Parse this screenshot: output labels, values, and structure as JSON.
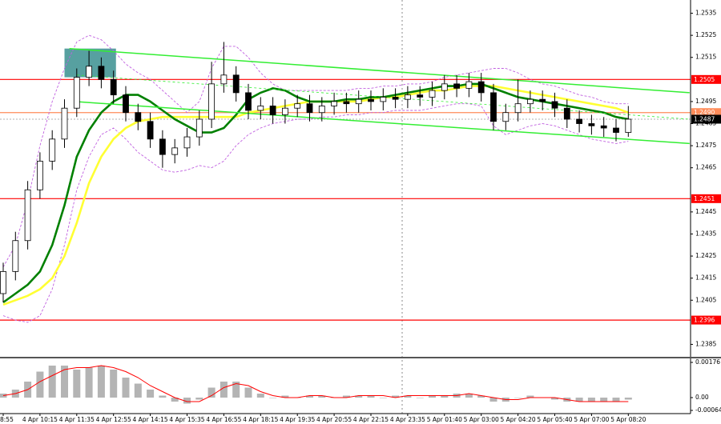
{
  "chart_data": [
    {
      "type": "candlestick",
      "categories": [
        "8:55",
        null,
        null,
        "4 Apr 10:15",
        null,
        null,
        "4 Apr 11:35",
        null,
        null,
        "4 Apr 12:55",
        null,
        null,
        "4 Apr 14:15",
        null,
        null,
        "4 Apr 15:35",
        null,
        null,
        "4 Apr 16:55",
        null,
        null,
        "4 Apr 18:15",
        null,
        null,
        "4 Apr 19:35",
        null,
        null,
        "4 Apr 20:55",
        null,
        null,
        "4 Apr 22:15",
        null,
        null,
        "4 Apr 23:35",
        null,
        null,
        "5 Apr 01:40",
        null,
        null,
        "5 Apr 03:00",
        null,
        null,
        "5 Apr 04:20",
        null,
        null,
        "5 Apr 05:40",
        null,
        null,
        "5 Apr 07:00",
        null,
        null,
        "5 Apr 08:20"
      ],
      "open": [
        1.2408,
        1.2418,
        1.2432,
        1.2455,
        1.2468,
        1.2478,
        1.2492,
        1.2506,
        1.2511,
        1.2505,
        1.2498,
        1.249,
        1.2486,
        1.2478,
        1.2471,
        1.2474,
        1.2479,
        1.2487,
        1.2503,
        1.2507,
        1.2499,
        1.2491,
        1.2493,
        1.2489,
        1.2492,
        1.2494,
        1.249,
        1.2493,
        1.2495,
        1.2494,
        1.2496,
        1.2495,
        1.2497,
        1.2496,
        1.2498,
        1.2497,
        1.25,
        1.2503,
        1.2501,
        1.2504,
        1.2499,
        1.2486,
        1.249,
        1.2494,
        1.2496,
        1.2495,
        1.2492,
        1.2487,
        1.2485,
        1.2484,
        1.2483,
        1.2481
      ],
      "high": [
        1.2422,
        1.2436,
        1.2459,
        1.2472,
        1.2482,
        1.2496,
        1.251,
        1.2518,
        1.2515,
        1.2509,
        1.2502,
        1.2494,
        1.249,
        1.2482,
        1.2478,
        1.2483,
        1.2491,
        1.2513,
        1.2522,
        1.2511,
        1.2503,
        1.2497,
        1.2497,
        1.2496,
        1.2498,
        1.2498,
        1.2497,
        1.2499,
        1.2499,
        1.25,
        1.25,
        1.2501,
        1.2501,
        1.2502,
        1.2502,
        1.2504,
        1.2507,
        1.2507,
        1.2508,
        1.2508,
        1.2503,
        1.2494,
        1.2505,
        1.25,
        1.25,
        1.2499,
        1.2496,
        1.2491,
        1.2489,
        1.2488,
        1.2487,
        1.2493
      ],
      "low": [
        1.2404,
        1.2414,
        1.2428,
        1.2451,
        1.2464,
        1.2474,
        1.2488,
        1.2502,
        1.2501,
        1.2494,
        1.2486,
        1.2482,
        1.2474,
        1.2465,
        1.2467,
        1.247,
        1.2475,
        1.2483,
        1.2499,
        1.2495,
        1.2487,
        1.2487,
        1.2485,
        1.2485,
        1.2488,
        1.2486,
        1.2486,
        1.2489,
        1.249,
        1.249,
        1.2491,
        1.2491,
        1.2492,
        1.2492,
        1.2493,
        1.2493,
        1.2496,
        1.2497,
        1.2497,
        1.2495,
        1.2482,
        1.2482,
        1.2486,
        1.249,
        1.2491,
        1.2488,
        1.2483,
        1.2481,
        1.248,
        1.2479,
        1.2477,
        1.2479
      ],
      "close": [
        1.2418,
        1.2432,
        1.2455,
        1.2468,
        1.2478,
        1.2492,
        1.2506,
        1.2511,
        1.2505,
        1.2498,
        1.249,
        1.2486,
        1.2478,
        1.2471,
        1.2474,
        1.2479,
        1.2487,
        1.2503,
        1.2507,
        1.2499,
        1.2491,
        1.2493,
        1.2489,
        1.2492,
        1.2494,
        1.249,
        1.2493,
        1.2495,
        1.2494,
        1.2496,
        1.2495,
        1.2497,
        1.2496,
        1.2498,
        1.2497,
        1.25,
        1.2503,
        1.2501,
        1.2504,
        1.2499,
        1.2486,
        1.249,
        1.2494,
        1.2496,
        1.2495,
        1.2492,
        1.2487,
        1.2485,
        1.2484,
        1.2483,
        1.2481,
        1.2487
      ],
      "up_color": "#ffffff",
      "down_color": "#000000",
      "overlays": [
        {
          "color": "#c060e0",
          "dashed": true,
          "values": [
            1.242,
            1.243,
            1.245,
            1.2475,
            1.2495,
            1.251,
            1.2522,
            1.2525,
            1.2523,
            1.2518,
            1.2512,
            1.2508,
            1.2505,
            1.25,
            1.2495,
            1.249,
            1.2495,
            1.251,
            1.252,
            1.252,
            1.2515,
            1.2508,
            1.2503,
            1.25,
            1.25,
            1.25,
            1.25,
            1.25,
            1.25,
            1.2501,
            1.2501,
            1.2502,
            1.2502,
            1.2503,
            1.2503,
            1.2504,
            1.2506,
            1.2507,
            1.2508,
            1.2509,
            1.251,
            1.251,
            1.2508,
            1.2505,
            1.2503,
            1.2502,
            1.25,
            1.2498,
            1.2497,
            1.2495,
            1.2494,
            1.2494
          ]
        },
        {
          "color": "#c060e0",
          "dashed": true,
          "values": [
            1.2398,
            1.2396,
            1.2395,
            1.2398,
            1.241,
            1.243,
            1.2455,
            1.247,
            1.248,
            1.2483,
            1.2478,
            1.2472,
            1.2468,
            1.2464,
            1.2463,
            1.2464,
            1.2466,
            1.2465,
            1.2468,
            1.2475,
            1.248,
            1.2483,
            1.2485,
            1.2486,
            1.2487,
            1.2487,
            1.2488,
            1.2488,
            1.2489,
            1.2489,
            1.249,
            1.249,
            1.2491,
            1.2491,
            1.2491,
            1.2492,
            1.2493,
            1.2494,
            1.2494,
            1.2493,
            1.2484,
            1.248,
            1.2482,
            1.2484,
            1.2485,
            1.2484,
            1.2482,
            1.248,
            1.2478,
            1.2477,
            1.2476,
            1.2477
          ]
        },
        {
          "color": "#ffff33",
          "dashed": false,
          "values": [
            1.2403,
            1.2405,
            1.2407,
            1.241,
            1.2415,
            1.2425,
            1.244,
            1.2458,
            1.247,
            1.2478,
            1.2483,
            1.2486,
            1.2487,
            1.2488,
            1.2488,
            1.2488,
            1.2488,
            1.2488,
            1.2488,
            1.2488,
            1.249,
            1.2491,
            1.2492,
            1.2493,
            1.2494,
            1.2495,
            1.2495,
            1.2495,
            1.2495,
            1.2495,
            1.2496,
            1.2497,
            1.2497,
            1.2498,
            1.2499,
            1.25,
            1.25,
            1.2501,
            1.2502,
            1.2502,
            1.2502,
            1.2501,
            1.25,
            1.2499,
            1.2498,
            1.2497,
            1.2496,
            1.2495,
            1.2494,
            1.2493,
            1.2492,
            1.249
          ]
        },
        {
          "color": "#008000",
          "dashed": false,
          "values": [
            1.2404,
            1.2408,
            1.2412,
            1.2418,
            1.243,
            1.2448,
            1.247,
            1.2482,
            1.249,
            1.2495,
            1.2498,
            1.2498,
            1.2495,
            1.2491,
            1.2487,
            1.2484,
            1.2481,
            1.2481,
            1.2483,
            1.2489,
            1.2496,
            1.2499,
            1.2501,
            1.25,
            1.2497,
            1.2495,
            1.2495,
            1.2495,
            1.2496,
            1.2496,
            1.2497,
            1.2497,
            1.2498,
            1.2499,
            1.25,
            1.2501,
            1.2502,
            1.2502,
            1.2503,
            1.2503,
            1.2501,
            1.2499,
            1.2497,
            1.2496,
            1.2495,
            1.2494,
            1.2493,
            1.2492,
            1.2491,
            1.249,
            1.2488,
            1.2487
          ]
        }
      ],
      "trendlines": [
        {
          "x": [
            5.4,
            56
          ],
          "y": [
            1.2519,
            1.2499
          ],
          "color": "#33ee33",
          "dashed": false
        },
        {
          "x": [
            5.8,
            56
          ],
          "y": [
            1.2495,
            1.2476
          ],
          "color": "#33ee33",
          "dashed": false
        },
        {
          "x": [
            6,
            56
          ],
          "y": [
            1.2507,
            1.2487
          ],
          "color": "#33ee33",
          "dashed": true
        }
      ],
      "zones": [
        {
          "x": [
            5,
            9.2
          ],
          "y": [
            1.2506,
            1.2519
          ],
          "color": "#3a8f8f"
        }
      ],
      "levels": [
        {
          "price": 1.2505,
          "color": "#ff0000",
          "dashed": false
        },
        {
          "price": 1.2451,
          "color": "#ff0000",
          "dashed": false
        },
        {
          "price": 1.2396,
          "color": "#ff0000",
          "dashed": false
        },
        {
          "price": {
            "value": 1.249,
            "label": "1.2490"
          },
          "color": "#ff8c5a",
          "dashed": false
        },
        {
          "price": 1.2487,
          "color": "#000000",
          "dashed": true
        }
      ],
      "ylim": [
        1.2379,
        1.2541
      ],
      "yticks": [
        1.2535,
        1.2525,
        1.2515,
        1.2495,
        1.2485,
        1.2475,
        1.2465,
        1.2445,
        1.2435,
        1.2425,
        1.2415,
        1.2405,
        1.2385
      ]
    },
    {
      "type": "macd",
      "values": [
        0.0002,
        0.0004,
        0.0008,
        0.0013,
        0.0016,
        0.0016,
        0.0014,
        0.0015,
        0.0016,
        0.0014,
        0.001,
        0.0007,
        0.0004,
        0.0001,
        -0.0002,
        -0.0003,
        -0.0001,
        0.0005,
        0.0008,
        0.0008,
        0.0005,
        0.0002,
        0,
        0.0001,
        0,
        0.0001,
        0.0001,
        0,
        0.0001,
        0.0001,
        0.0001,
        0,
        0.0001,
        0.0001,
        0,
        0.0001,
        0.0001,
        0.0002,
        0.0002,
        0.0001,
        -0.0002,
        -0.0002,
        0,
        0.0001,
        0,
        -0.0001,
        -0.0002,
        -0.0002,
        -0.0002,
        -0.0002,
        -0.0002,
        -0.0001
      ],
      "color": "#b4b4b4",
      "signal": [
        0.0001,
        0.0002,
        0.0004,
        0.0008,
        0.0011,
        0.0014,
        0.0015,
        0.0015,
        0.0016,
        0.0015,
        0.0013,
        0.001,
        0.0006,
        0.0003,
        0,
        -0.0002,
        -0.0002,
        0.0001,
        0.0005,
        0.0007,
        0.0006,
        0.0003,
        0.0001,
        0,
        0,
        0.0001,
        0.0001,
        0,
        0,
        0.0001,
        0.0001,
        0.0001,
        0,
        0.0001,
        0.0001,
        0.0001,
        0.0001,
        0.0001,
        0.0002,
        0.0001,
        0,
        -0.0001,
        -0.0001,
        0,
        0,
        0,
        -0.0001,
        -0.0002,
        -0.0002,
        -0.0002,
        -0.0002,
        -0.0002
      ],
      "signal_color": "#ff0000",
      "ylim": [
        -0.00124,
        0.002
      ],
      "yticks": [
        0.00176,
        {
          "value": 0,
          "label": "0.00"
        },
        -0.00064
      ]
    }
  ]
}
